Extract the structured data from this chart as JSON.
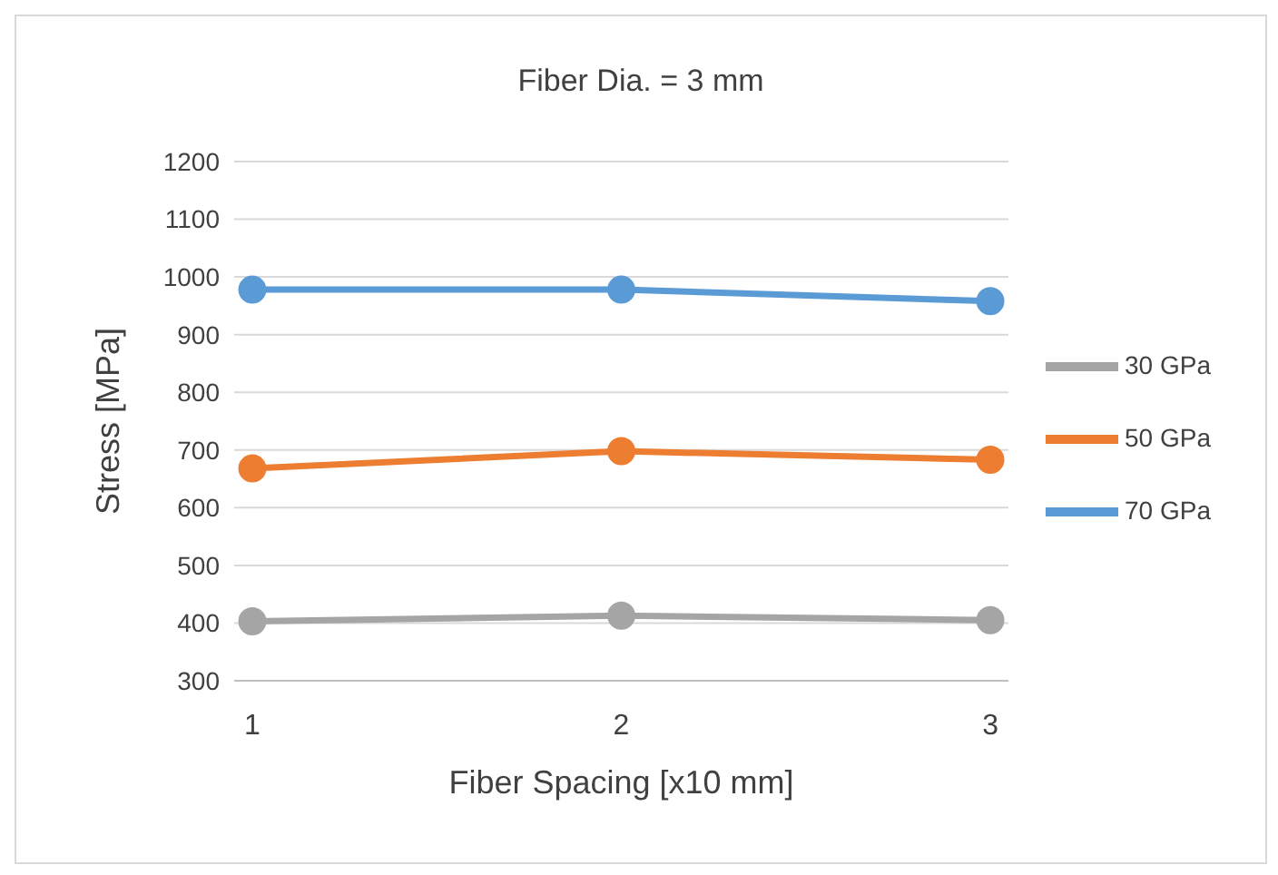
{
  "chart_data": {
    "type": "line",
    "title": "Fiber Dia. = 3 mm",
    "xlabel": "Fiber Spacing [x10 mm]",
    "ylabel": "Stress [MPa]",
    "categories": [
      "1",
      "2",
      "3"
    ],
    "series": [
      {
        "name": "70 GPa",
        "color": "#5b9bd5",
        "values": [
          978,
          978,
          958
        ]
      },
      {
        "name": "50 GPa",
        "color": "#ed7d31",
        "values": [
          668,
          698,
          683
        ]
      },
      {
        "name": "30 GPa",
        "color": "#a5a5a5",
        "values": [
          403,
          413,
          405
        ]
      }
    ],
    "ylim": [
      300,
      1200
    ],
    "yticks": [
      300,
      400,
      500,
      600,
      700,
      800,
      900,
      1000,
      1100,
      1200
    ],
    "grid": "y",
    "legend": "right",
    "marker": "circle",
    "line_style": "solid"
  }
}
